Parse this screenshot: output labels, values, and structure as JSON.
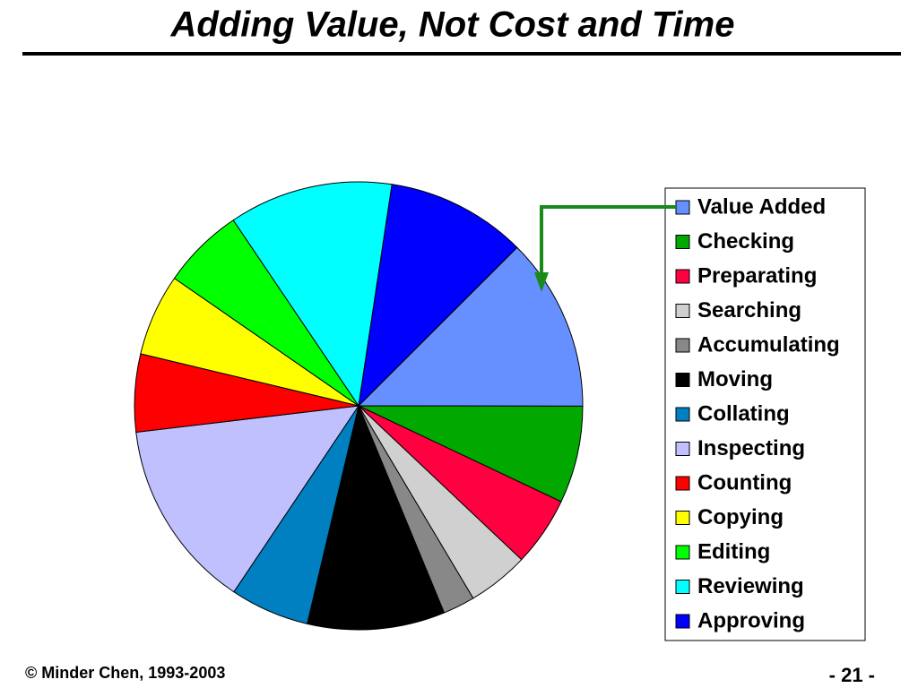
{
  "chart_data": {
    "type": "pie",
    "title": "Adding Value, Not Cost and Time",
    "categories": [
      "Value Added",
      "Checking",
      "Preparating",
      "Searching",
      "Accumulating",
      "Moving",
      "Collating",
      "Inspecting",
      "Counting",
      "Copying",
      "Editing",
      "Reviewing",
      "Approving"
    ],
    "values": [
      12.5,
      7,
      5,
      4.4,
      2.3,
      9.9,
      5.7,
      13.7,
      5.6,
      5.9,
      5.9,
      11.8,
      10.1
    ],
    "colors": [
      "#6690ff",
      "#00a800",
      "#ff0040",
      "#d0d0d0",
      "#888888",
      "#000000",
      "#0080c0",
      "#c0c0ff",
      "#ff0000",
      "#ffff00",
      "#00ff00",
      "#00ffff",
      "#0000ff"
    ],
    "legend": "right"
  },
  "footer": {
    "copyright": "© Minder Chen, 1993-2003",
    "page": "- 21 -"
  }
}
